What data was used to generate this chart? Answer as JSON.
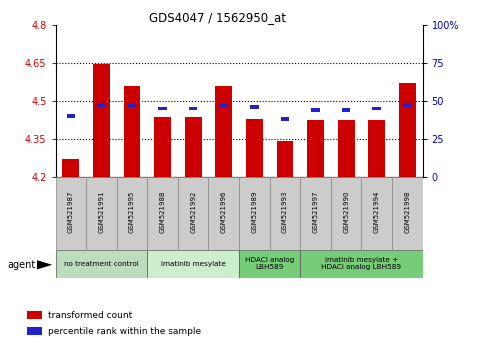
{
  "title": "GDS4047 / 1562950_at",
  "samples": [
    "GSM521987",
    "GSM521991",
    "GSM521995",
    "GSM521988",
    "GSM521992",
    "GSM521996",
    "GSM521989",
    "GSM521993",
    "GSM521997",
    "GSM521990",
    "GSM521994",
    "GSM521998"
  ],
  "bar_values": [
    4.27,
    4.645,
    4.56,
    4.435,
    4.435,
    4.56,
    4.43,
    4.34,
    4.425,
    4.425,
    4.425,
    4.57
  ],
  "percentile_values": [
    40,
    47,
    47,
    45,
    45,
    47,
    46,
    38,
    44,
    44,
    45,
    47
  ],
  "bar_bottom": 4.2,
  "bar_color": "#cc0000",
  "percentile_color": "#2222cc",
  "ylim_left": [
    4.2,
    4.8
  ],
  "ylim_right": [
    0,
    100
  ],
  "yticks_left": [
    4.2,
    4.35,
    4.5,
    4.65,
    4.8
  ],
  "ytick_labels_left": [
    "4.2",
    "4.35",
    "4.5",
    "4.65",
    "4.8"
  ],
  "yticks_right": [
    0,
    25,
    50,
    75,
    100
  ],
  "ytick_labels_right": [
    "0",
    "25",
    "50",
    "75",
    "100%"
  ],
  "hlines": [
    4.35,
    4.5,
    4.65
  ],
  "groups": [
    {
      "label": "no treatment control",
      "start": 0,
      "end": 3,
      "color": "#bbddbb"
    },
    {
      "label": "imatinib mesylate",
      "start": 3,
      "end": 6,
      "color": "#cceecc"
    },
    {
      "label": "HDACi analog\nLBH589",
      "start": 6,
      "end": 8,
      "color": "#77cc77"
    },
    {
      "label": "imatinib mesylate +\nHDACi analog LBH589",
      "start": 8,
      "end": 12,
      "color": "#77cc77"
    }
  ],
  "agent_label": "agent",
  "legend_items": [
    {
      "label": "transformed count",
      "color": "#cc0000"
    },
    {
      "label": "percentile rank within the sample",
      "color": "#2222cc"
    }
  ],
  "left_tick_color": "#cc0000",
  "right_tick_color": "#0000cc",
  "sample_bg_color": "#cccccc",
  "sample_border_color": "#888888"
}
